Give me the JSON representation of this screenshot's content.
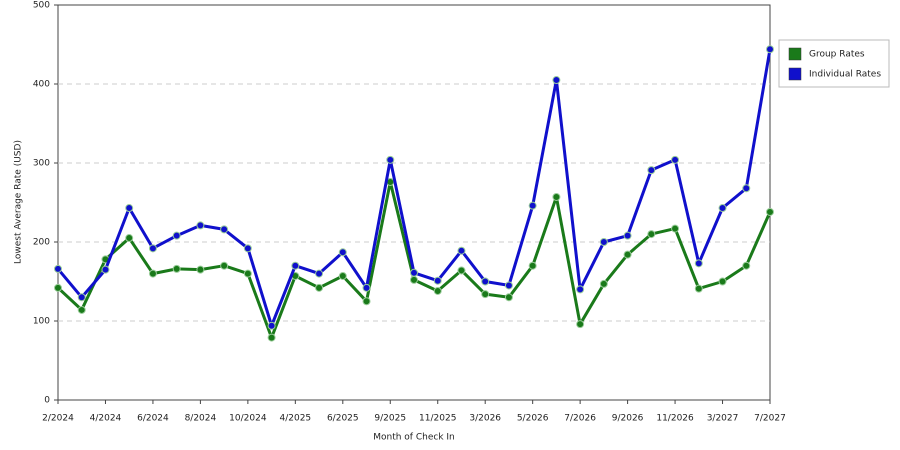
{
  "chart_data": {
    "type": "line",
    "x_label": "Month of Check In",
    "y_label": "Lowest Average Rate (USD)",
    "categories": [
      "2/2024",
      null,
      "4/2024",
      null,
      "6/2024",
      null,
      "8/2024",
      null,
      "10/2024",
      null,
      "4/2025",
      null,
      "6/2025",
      null,
      "9/2025",
      null,
      "11/2025",
      null,
      "3/2026",
      null,
      "5/2026",
      null,
      "7/2026",
      null,
      "9/2026",
      null,
      "11/2026",
      null,
      "3/2027",
      null,
      "7/2027"
    ],
    "series": [
      {
        "name": "Group Rates",
        "color": "#1a7a1a",
        "values": [
          142,
          114,
          178,
          205,
          160,
          166,
          165,
          170,
          160,
          79,
          157,
          142,
          157,
          125,
          276,
          152,
          138,
          164,
          134,
          130,
          170,
          257,
          96,
          147,
          184,
          210,
          217,
          141,
          150,
          170,
          238
        ]
      },
      {
        "name": "Individual Rates",
        "color": "#1010cc",
        "values": [
          166,
          130,
          165,
          243,
          192,
          208,
          221,
          216,
          192,
          94,
          170,
          160,
          187,
          142,
          304,
          161,
          151,
          189,
          150,
          145,
          246,
          405,
          140,
          200,
          208,
          291,
          304,
          173,
          243,
          268,
          444
        ]
      }
    ],
    "ylim": [
      0,
      500
    ],
    "yticks": [
      0,
      100,
      200,
      300,
      400,
      500
    ],
    "grid": true,
    "legend": "right"
  }
}
